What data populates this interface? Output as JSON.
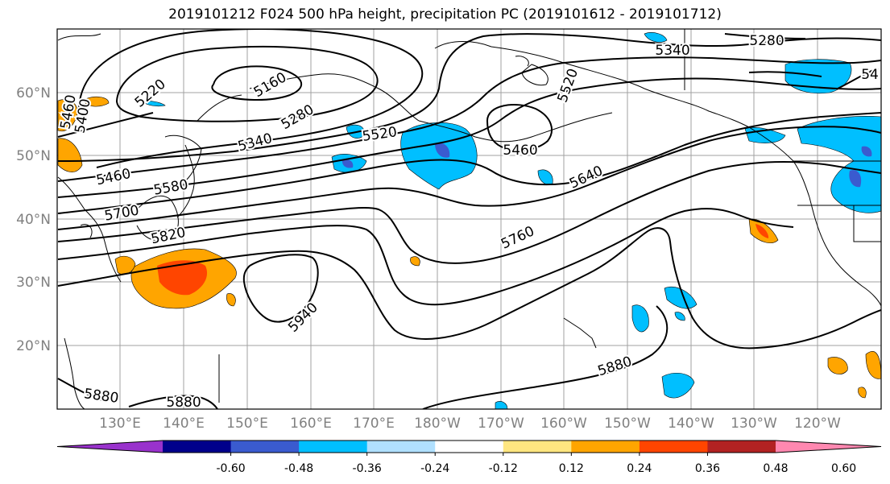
{
  "title": "2019101212 F024 500 hPa height, precipitation PC (2019101612 - 2019101712)",
  "lat_labels": [
    "60°N",
    "50°N",
    "40°N",
    "30°N",
    "20°N"
  ],
  "lon_labels": [
    "130°E",
    "140°E",
    "150°E",
    "160°E",
    "170°E",
    "180°W",
    "170°W",
    "160°W",
    "150°W",
    "140°W",
    "130°W",
    "120°W"
  ],
  "contour_labels": [
    "5460",
    "5400",
    "5220",
    "5160",
    "5280",
    "5340",
    "5460",
    "5580",
    "5700",
    "5820",
    "5520",
    "5520",
    "5460",
    "5640",
    "5760",
    "5940",
    "5880",
    "5880",
    "5880",
    "5280",
    "5340",
    "54"
  ],
  "colorbar": {
    "colors": [
      "#9932cc",
      "#00008b",
      "#3a5bcf",
      "#00bfff",
      "#b0e0ff",
      "#ffffff",
      "#ffe680",
      "#ffa500",
      "#ff4500",
      "#b22222",
      "#ff88b0"
    ],
    "tick_labels": [
      "-0.60",
      "-0.48",
      "-0.36",
      "-0.24",
      "-0.12",
      "0.12",
      "0.24",
      "0.36",
      "0.48",
      "0.60"
    ]
  }
}
